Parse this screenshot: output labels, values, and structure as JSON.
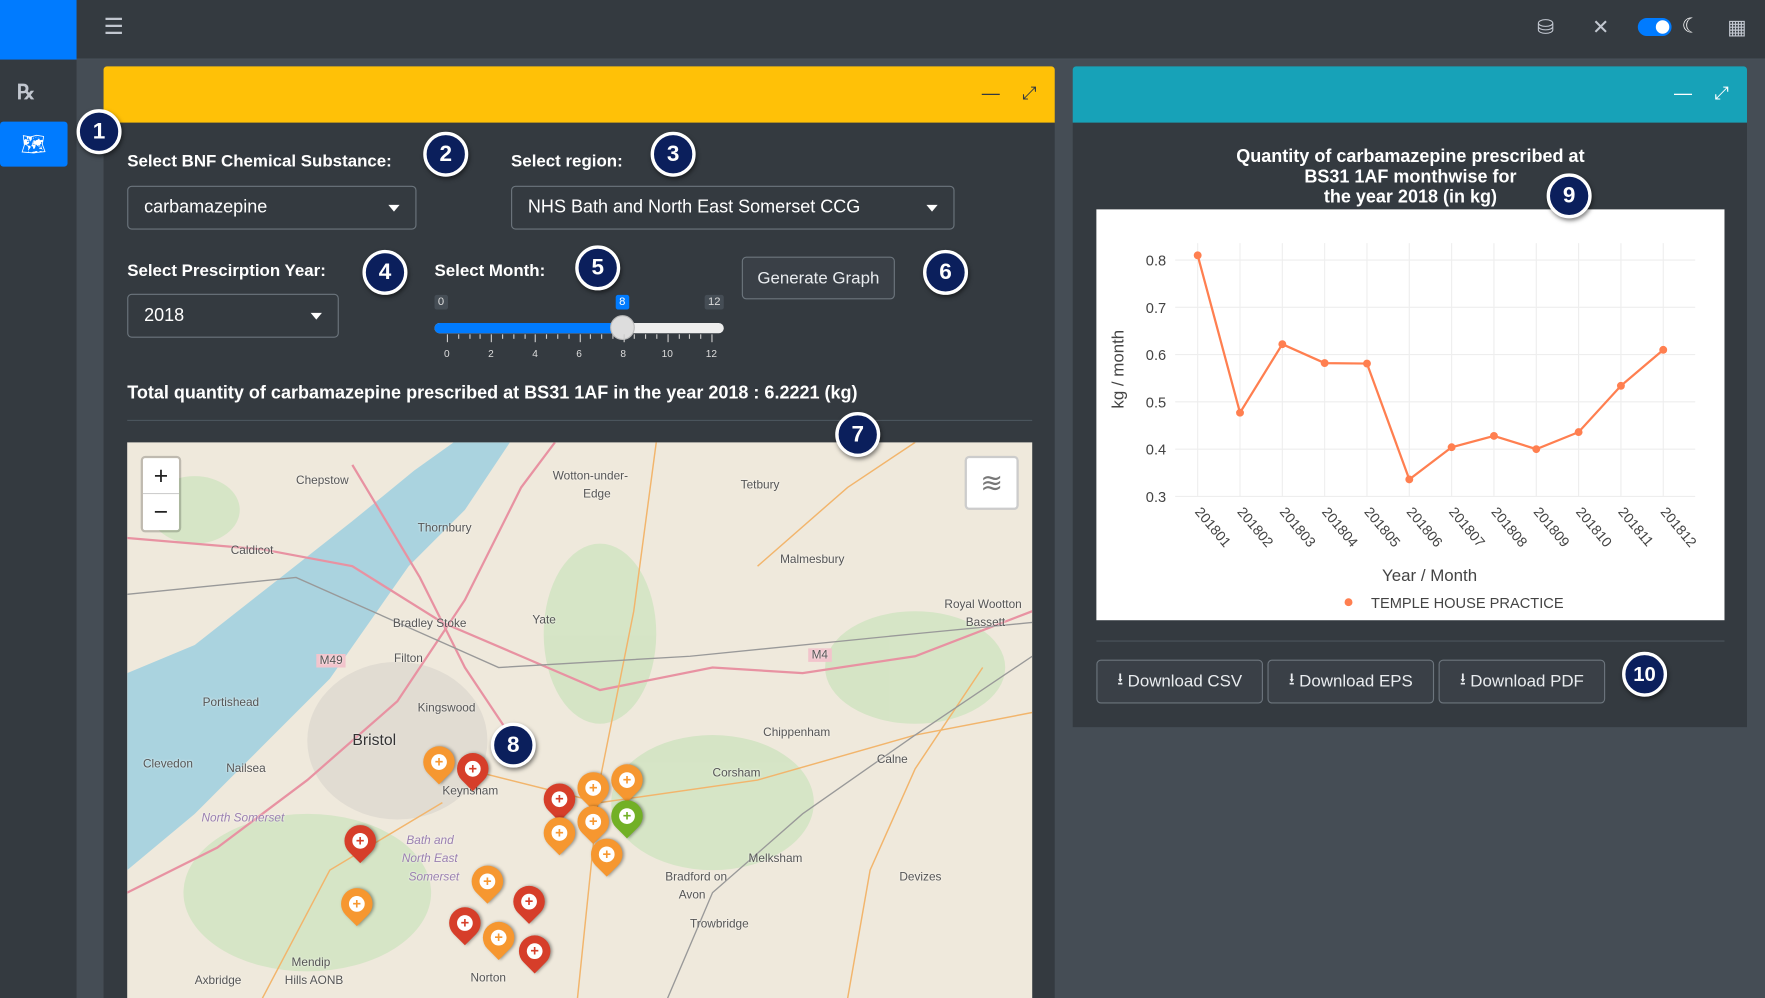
{
  "topbar": {
    "menu_icon": "hamburger-icon",
    "icons": [
      "database-icon",
      "compress-icon",
      "dark-mode-toggle",
      "moon-icon",
      "apps-grid-icon"
    ]
  },
  "sidebar": {
    "items": [
      {
        "icon": "prescription-icon",
        "label": "℞"
      },
      {
        "icon": "map-icon",
        "active": true
      }
    ]
  },
  "left_card": {
    "header_color": "#ffc107",
    "substance_label": "Select BNF Chemical Substance:",
    "substance_value": "carbamazepine",
    "region_label": "Select region:",
    "region_value": "NHS Bath and North East Somerset CCG",
    "year_label": "Select Prescirption Year:",
    "year_value": "2018",
    "month_label": "Select Month:",
    "month_min": "0",
    "month_max": "12",
    "month_value": "8",
    "month_ticks": [
      "0",
      "2",
      "4",
      "6",
      "8",
      "10",
      "12"
    ],
    "generate_label": "Generate Graph",
    "total_text": "Total quantity of carbamazepine prescribed at BS31 1AF in the year 2018 : 6.2221 (kg)"
  },
  "map": {
    "zoom_in": "+",
    "zoom_out": "−",
    "places": [
      "Chepstow",
      "Wotton-under-",
      "Edge",
      "Tetbury",
      "Thornbury",
      "Caldicot",
      "Malmesbury",
      "Bradley Stoke",
      "Yate",
      "Royal Wootton",
      "Bassett",
      "M49",
      "Filton",
      "M4",
      "Portishead",
      "Kingswood",
      "Bristol",
      "Chippenham",
      "Clevedon",
      "Nailsea",
      "Keynsham",
      "Corsham",
      "Calne",
      "North Somerset",
      "Bath and",
      "North East",
      "Somerset",
      "Melksham",
      "Bradford on",
      "Avon",
      "Devizes",
      "Trowbridge",
      "Mendip",
      "Hills AONB",
      "Axbridge",
      "Norton"
    ]
  },
  "right_card": {
    "header_color": "#17a2b8",
    "download_csv": "Download CSV",
    "download_eps": "Download EPS",
    "download_pdf": "Download PDF"
  },
  "chart_data": {
    "type": "line",
    "title": [
      "Quantity of carbamazepine prescribed at",
      "BS31 1AF monthwise for",
      "the year 2018 (in kg)"
    ],
    "xlabel": "Year / Month",
    "ylabel": "kg / month",
    "categories": [
      "201801",
      "201802",
      "201803",
      "201804",
      "201805",
      "201806",
      "201807",
      "201808",
      "201809",
      "201810",
      "201811",
      "201812"
    ],
    "series": [
      {
        "name": "TEMPLE HOUSE PRACTICE",
        "color": "#ff7f50",
        "values": [
          0.81,
          0.477,
          0.622,
          0.582,
          0.581,
          0.336,
          0.404,
          0.428,
          0.4,
          0.436,
          0.534,
          0.61
        ]
      }
    ],
    "yticks": [
      "0.3",
      "0.4",
      "0.5",
      "0.6",
      "0.7",
      "0.8"
    ],
    "ylim": [
      0.3,
      0.8
    ],
    "grid": true,
    "legend": "bottom"
  },
  "annotations": [
    "1",
    "2",
    "3",
    "4",
    "5",
    "6",
    "7",
    "8",
    "9",
    "10"
  ]
}
